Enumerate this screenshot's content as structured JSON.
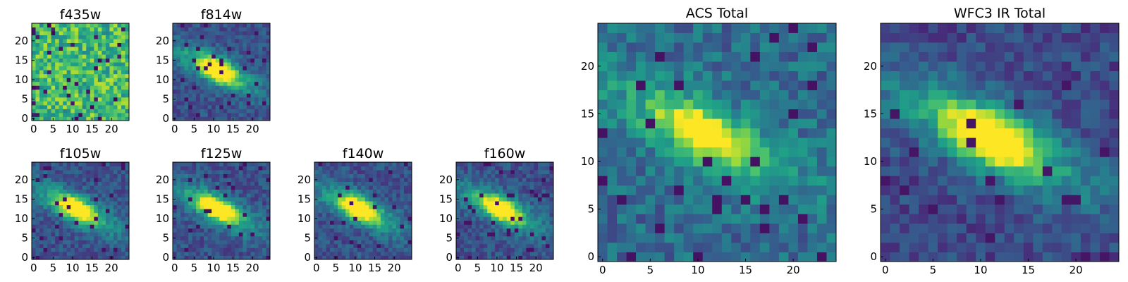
{
  "figure": {
    "colormap": [
      "#440154",
      "#46327e",
      "#365c8d",
      "#277f8e",
      "#1fa187",
      "#4ac16d",
      "#a0da39",
      "#fde725"
    ]
  },
  "chart_data": [
    {
      "type": "heatmap",
      "title": "f435w",
      "grid": 25,
      "xlim": [
        -0.5,
        24.5
      ],
      "ylim": [
        -0.5,
        24.5
      ],
      "xticks": [
        0,
        5,
        10,
        15,
        20
      ],
      "yticks": [
        0,
        5,
        10,
        15,
        20
      ],
      "pattern": "noise",
      "seed": 11
    },
    {
      "type": "heatmap",
      "title": "f814w",
      "grid": 25,
      "xlim": [
        -0.5,
        24.5
      ],
      "ylim": [
        -0.5,
        24.5
      ],
      "xticks": [
        0,
        5,
        10,
        15,
        20
      ],
      "yticks": [
        0,
        5,
        10,
        15,
        20
      ],
      "pattern": "galaxy",
      "seed": 23
    },
    {
      "type": "heatmap",
      "title": "f105w",
      "grid": 25,
      "xlim": [
        -0.5,
        24.5
      ],
      "ylim": [
        -0.5,
        24.5
      ],
      "xticks": [
        0,
        5,
        10,
        15,
        20
      ],
      "yticks": [
        0,
        5,
        10,
        15,
        20
      ],
      "pattern": "galaxy",
      "seed": 37
    },
    {
      "type": "heatmap",
      "title": "f125w",
      "grid": 25,
      "xlim": [
        -0.5,
        24.5
      ],
      "ylim": [
        -0.5,
        24.5
      ],
      "xticks": [
        0,
        5,
        10,
        15,
        20
      ],
      "yticks": [
        0,
        5,
        10,
        15,
        20
      ],
      "pattern": "galaxy",
      "seed": 41
    },
    {
      "type": "heatmap",
      "title": "f140w",
      "grid": 25,
      "xlim": [
        -0.5,
        24.5
      ],
      "ylim": [
        -0.5,
        24.5
      ],
      "xticks": [
        0,
        5,
        10,
        15,
        20
      ],
      "yticks": [
        0,
        5,
        10,
        15,
        20
      ],
      "pattern": "galaxy",
      "seed": 53
    },
    {
      "type": "heatmap",
      "title": "f160w",
      "grid": 25,
      "xlim": [
        -0.5,
        24.5
      ],
      "ylim": [
        -0.5,
        24.5
      ],
      "xticks": [
        0,
        5,
        10,
        15,
        20
      ],
      "yticks": [
        0,
        5,
        10,
        15,
        20
      ],
      "pattern": "galaxy",
      "seed": 67
    },
    {
      "type": "heatmap",
      "title": "ACS Total",
      "grid": 25,
      "xlim": [
        -0.5,
        24.5
      ],
      "ylim": [
        -0.5,
        24.5
      ],
      "xticks": [
        0,
        5,
        10,
        15,
        20
      ],
      "yticks": [
        0,
        5,
        10,
        15,
        20
      ],
      "pattern": "acs",
      "seed": 79
    },
    {
      "type": "heatmap",
      "title": "WFC3 IR Total",
      "grid": 25,
      "xlim": [
        -0.5,
        24.5
      ],
      "ylim": [
        -0.5,
        24.5
      ],
      "xticks": [
        0,
        5,
        10,
        15,
        20
      ],
      "yticks": [
        0,
        5,
        10,
        15,
        20
      ],
      "pattern": "ir",
      "seed": 83
    }
  ]
}
